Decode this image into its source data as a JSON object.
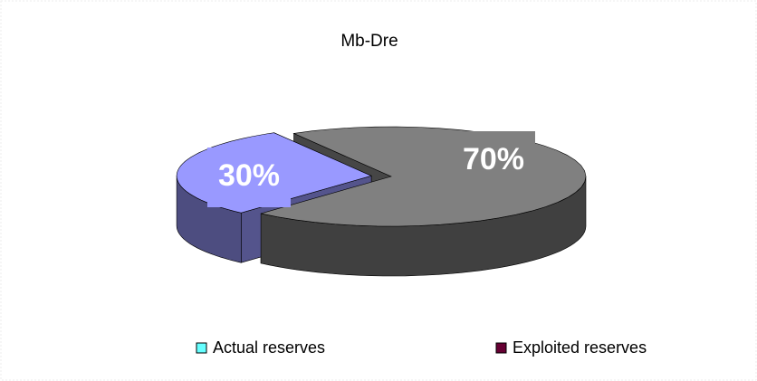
{
  "chart_data": {
    "type": "pie",
    "title": "Mb-Dre",
    "categories": [
      "Actual reserves",
      "Exploited reserves"
    ],
    "values": [
      30,
      70
    ],
    "value_labels": [
      "30%",
      "70%"
    ],
    "colors": [
      "#9999ff",
      "#808080"
    ],
    "legend_colors": [
      "#66ffff",
      "#660033"
    ]
  }
}
